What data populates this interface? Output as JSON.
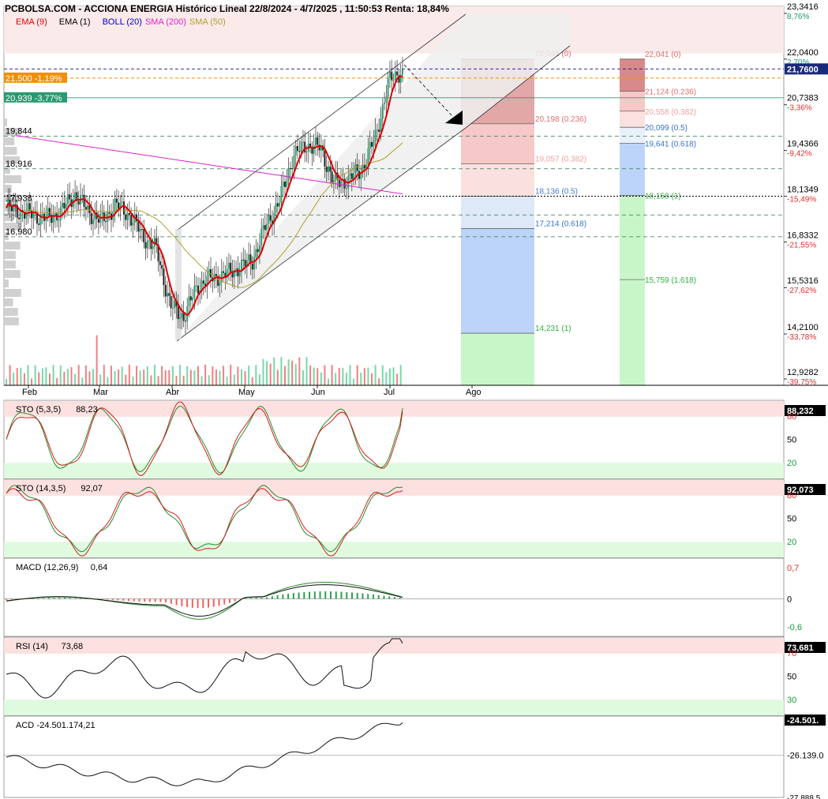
{
  "header": {
    "title": "PCBOLSA.COM - ACCIONA ENERGIA Histórico Lineal 22/8/2024 - 4/7/2025 , 11:50:53 Renta: 18,84%"
  },
  "legend": [
    {
      "label": "EMA (9)",
      "color": "#e00000"
    },
    {
      "label": "EMA (1)",
      "color": "#000000"
    },
    {
      "label": "BOLL (20)",
      "color": "#0000cc"
    },
    {
      "label": "SMA (200)",
      "color": "#dd22cc"
    },
    {
      "label": "SMA (50)",
      "color": "#b0a030"
    }
  ],
  "price_axis": {
    "ticks": [
      "23,3416",
      "22,0400",
      "20,7383",
      "19,4366",
      "18,1349",
      "16,8332",
      "15,5316",
      "14,2100",
      "12,9282"
    ],
    "pct": [
      "8,76%",
      "2,70%",
      "-3,36%",
      "-9,42%",
      "-15,49%",
      "-21,55%",
      "-27,62%",
      "-33,78%",
      "-39,75%"
    ],
    "last_price": "21,7600"
  },
  "left_labels": [
    {
      "text": "21,500 -1,19%",
      "kind": "orange"
    },
    {
      "text": "20,939 -3,77%",
      "kind": "green"
    },
    {
      "text": "19,844"
    },
    {
      "text": "18,916"
    },
    {
      "text": "17,938"
    },
    {
      "text": "16,980"
    }
  ],
  "months": [
    "Feb",
    "Mar",
    "Abr",
    "May",
    "Jun",
    "Jul",
    "Ago"
  ],
  "fib1": [
    {
      "label": "22,041 (0)",
      "color": "#e07070"
    },
    {
      "label": "20,198 (0.236)",
      "color": "#e07070"
    },
    {
      "label": "19,057 (0.382)",
      "color": "#f0a0a0"
    },
    {
      "label": "18,136 (0.5)",
      "color": "#4a7ad0"
    },
    {
      "label": "17,214 (0.618)",
      "color": "#3a70d0"
    },
    {
      "label": "14,231 (1)",
      "color": "#30b040"
    }
  ],
  "fib2": [
    {
      "label": "22,041 (0)",
      "color": "#e07070"
    },
    {
      "label": "21,124 (0.236)",
      "color": "#e07070"
    },
    {
      "label": "20,558 (0.382)",
      "color": "#f0a0a0"
    },
    {
      "label": "20,099 (0.5)",
      "color": "#3a70d0"
    },
    {
      "label": "19,641 (0.618)",
      "color": "#3a70d0"
    },
    {
      "label": "18,158 (1)",
      "color": "#30b040"
    },
    {
      "label": "15,759 (1.618)",
      "color": "#30b040"
    }
  ],
  "panels": [
    {
      "name": "STO (5,3,5)",
      "value": "88,23",
      "badge": "88,232",
      "axis": [
        "80",
        "50",
        "20"
      ]
    },
    {
      "name": "STO (14,3,5)",
      "value": "92,07",
      "badge": "92,073",
      "axis": [
        "80",
        "50",
        "20"
      ]
    },
    {
      "name": "MACD (12,26,9)",
      "value": "0,64",
      "axis": [
        "0,7",
        "0",
        "-0,6"
      ]
    },
    {
      "name": "RSI (14)",
      "value": "73,68",
      "badge": "73,681",
      "axis": [
        "70",
        "50",
        "30"
      ]
    },
    {
      "name": "ACD",
      "value": "-24.501.174,21",
      "badge": "-24.501.",
      "axis": [
        "-26.139.0",
        "-27.888.5"
      ]
    }
  ],
  "chart_data": {
    "type": "line",
    "title": "PCBOLSA.COM - ACCIONA ENERGIA Histórico Lineal 22/8/2024 - 4/7/2025",
    "x": [
      "Feb",
      "Mar",
      "Abr",
      "May",
      "Jun",
      "Jul"
    ],
    "ylim": [
      12.9282,
      23.3416
    ],
    "y_close_approx": [
      17.8,
      17.7,
      17.6,
      17.5,
      17.7,
      18.2,
      17.7,
      17.4,
      17.9,
      17.6,
      17.0,
      16.6,
      15.0,
      14.7,
      15.6,
      15.8,
      15.9,
      16.1,
      16.3,
      17.3,
      18.0,
      19.3,
      19.6,
      19.5,
      18.5,
      18.6,
      18.9,
      19.8,
      21.4,
      21.76
    ],
    "series": [
      {
        "name": "EMA (9)",
        "color": "#e00000"
      },
      {
        "name": "SMA (200)",
        "color": "#dd22cc"
      },
      {
        "name": "SMA (50)",
        "color": "#b0a030"
      }
    ],
    "levels": [
      21.5,
      20.939,
      19.844,
      18.916,
      17.938,
      16.98
    ]
  }
}
